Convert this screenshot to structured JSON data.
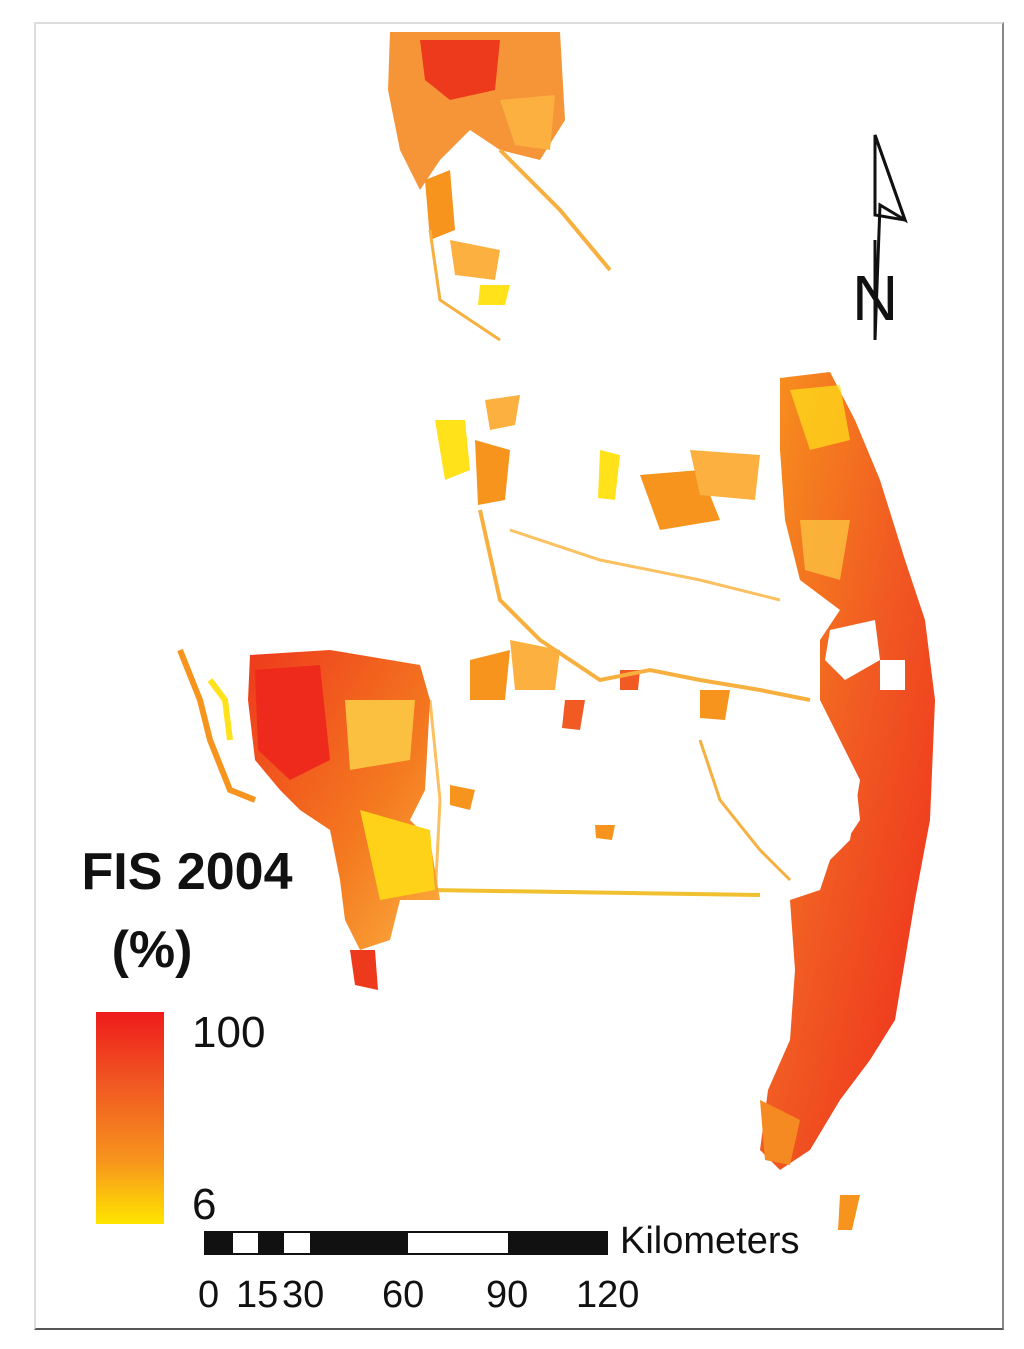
{
  "legend": {
    "title": "FIS 2004",
    "unit": "(%)",
    "max_label": "100",
    "min_label": "6",
    "color_high": "#ee1c1c",
    "color_mid": "#f7941d",
    "color_low": "#ffe500"
  },
  "scale_bar": {
    "unit_label": "Kilometers",
    "ticks": [
      "0",
      "15",
      "30",
      "60",
      "90",
      "120"
    ]
  },
  "north_arrow": {
    "label": "N",
    "icon": "north-arrow-icon"
  },
  "map": {
    "fill_colors": [
      "#ee2a1c",
      "#f15a22",
      "#f7941d",
      "#fbb040",
      "#ffe21a"
    ]
  }
}
